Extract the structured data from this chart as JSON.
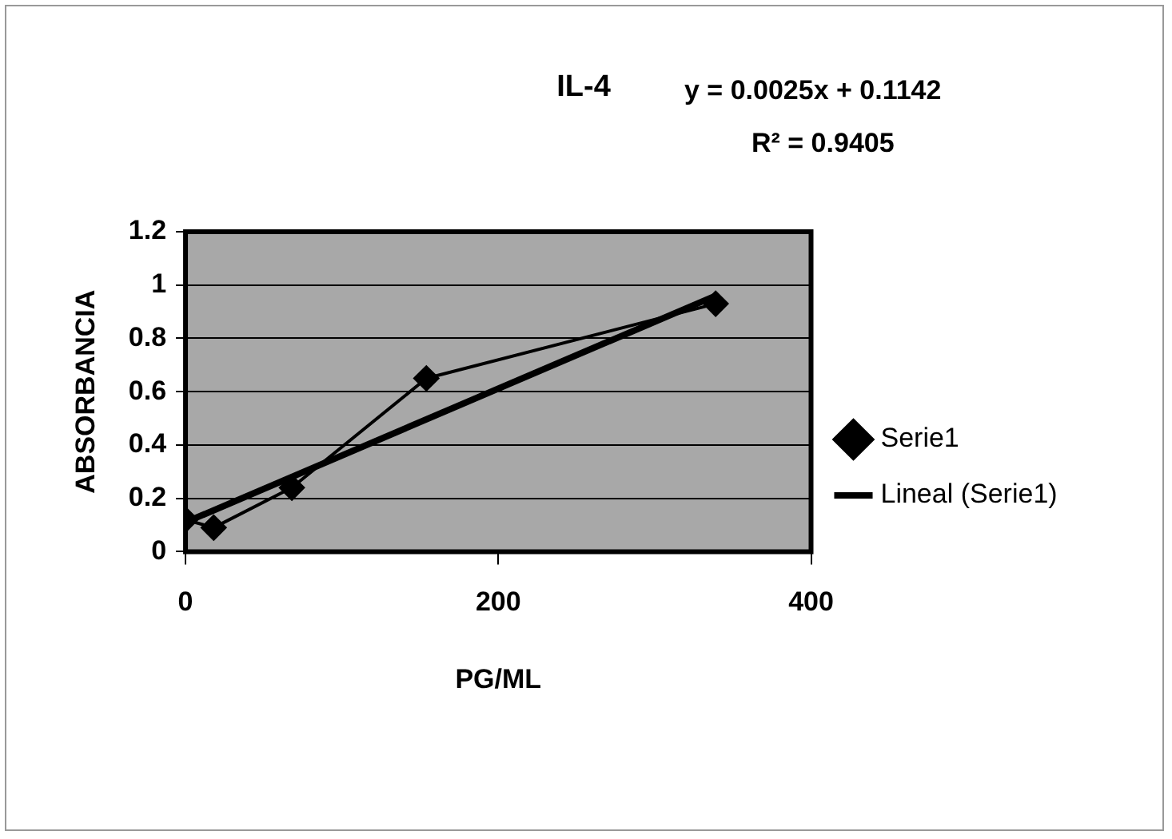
{
  "chart_data": {
    "type": "line",
    "title": "IL-4",
    "xlabel": "PG/ML",
    "ylabel": "ABSORBANCIA",
    "annotations": [
      "y = 0.0025x + 0.1142",
      "R² = 0.9405"
    ],
    "x": [
      0,
      18,
      68,
      154,
      339
    ],
    "series": [
      {
        "name": "Serie1",
        "color": "#000000",
        "values": [
          0.12,
          0.09,
          0.24,
          0.65,
          0.93
        ],
        "marker": "diamond"
      },
      {
        "name": "Lineal (Serie1)",
        "type": "line",
        "color": "#000000",
        "x": [
          0,
          339
        ],
        "values": [
          0.11,
          0.96
        ],
        "marker": "none"
      }
    ],
    "xlim": [
      0,
      400
    ],
    "xticks": [
      0,
      200,
      400
    ],
    "ylim": [
      0,
      1.2
    ],
    "yticks": [
      0,
      0.2,
      0.4,
      0.6,
      0.8,
      1,
      1.2
    ],
    "grid": "y",
    "legend": "right",
    "line_style": "solid"
  }
}
